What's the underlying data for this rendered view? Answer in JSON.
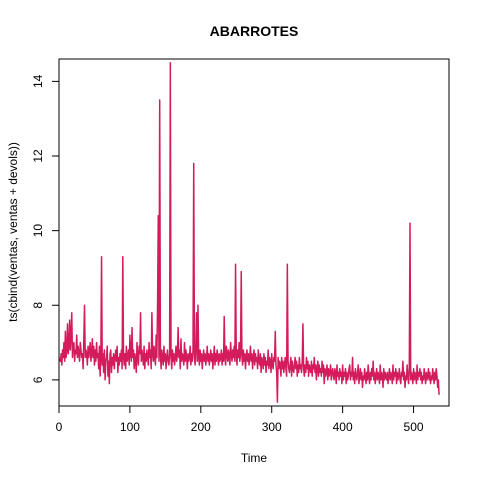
{
  "chart_data": {
    "type": "line",
    "title": "ABARROTES",
    "xlabel": "Time",
    "ylabel": "ts(cbind(ventas, ventas + devols))",
    "xlim": [
      0,
      550
    ],
    "ylim": [
      5.3,
      14.6
    ],
    "xticks": [
      "0",
      "100",
      "200",
      "300",
      "400",
      "500"
    ],
    "yticks": [
      "6",
      "8",
      "10",
      "12",
      "14"
    ],
    "grid": false,
    "legend": "none",
    "line_color": "#D41C5C",
    "series": [
      {
        "x_start": 1,
        "x_step": 1,
        "values": [
          6.6,
          6.5,
          6.7,
          6.4,
          6.8,
          6.6,
          7.0,
          6.5,
          7.3,
          6.6,
          6.8,
          7.5,
          6.7,
          6.9,
          7.6,
          6.8,
          7.2,
          7.8,
          6.6,
          6.9,
          7.0,
          6.5,
          6.8,
          6.7,
          7.2,
          6.6,
          6.9,
          6.7,
          6.5,
          7.0,
          6.8,
          6.6,
          6.7,
          6.3,
          7.1,
          8.0,
          6.6,
          6.8,
          6.7,
          6.4,
          6.9,
          6.6,
          6.8,
          7.0,
          6.5,
          6.7,
          7.1,
          6.6,
          6.9,
          6.4,
          6.8,
          6.5,
          7.0,
          6.6,
          6.7,
          6.3,
          6.9,
          6.1,
          6.6,
          9.3,
          6.4,
          6.7,
          6.2,
          6.8,
          6.0,
          6.5,
          6.6,
          6.9,
          6.1,
          6.5,
          5.9,
          6.7,
          6.8,
          6.2,
          6.6,
          6.4,
          6.7,
          6.3,
          6.6,
          6.8,
          6.5,
          6.9,
          6.2,
          6.6,
          6.4,
          6.7,
          6.5,
          6.8,
          6.3,
          9.3,
          6.6,
          6.4,
          6.7,
          6.3,
          6.9,
          6.5,
          6.6,
          6.8,
          6.4,
          7.2,
          6.7,
          6.5,
          7.4,
          6.6,
          6.8,
          6.3,
          6.7,
          6.5,
          6.2,
          7.0,
          6.6,
          6.4,
          6.9,
          6.7,
          7.8,
          6.5,
          6.8,
          6.6,
          6.4,
          6.9,
          6.3,
          6.7,
          6.5,
          6.8,
          6.6,
          6.4,
          7.0,
          6.6,
          6.8,
          6.3,
          7.8,
          6.7,
          6.5,
          6.9,
          6.6,
          6.4,
          7.2,
          6.6,
          8.0,
          10.4,
          6.5,
          13.5,
          6.7,
          6.3,
          6.8,
          6.6,
          6.4,
          6.9,
          6.5,
          6.7,
          6.3,
          6.6,
          6.8,
          6.5,
          6.4,
          6.7,
          14.5,
          6.6,
          6.3,
          6.8,
          6.5,
          6.7,
          6.4,
          6.6,
          6.9,
          6.5,
          6.7,
          7.4,
          6.6,
          6.8,
          6.3,
          7.1,
          6.5,
          6.7,
          6.6,
          6.4,
          7.0,
          6.5,
          6.8,
          6.6,
          6.3,
          6.7,
          6.5,
          6.6,
          6.9,
          6.4,
          6.7,
          6.5,
          6.8,
          11.8,
          6.6,
          6.4,
          6.9,
          7.8,
          6.5,
          8.0,
          6.6,
          6.4,
          6.8,
          6.5,
          6.7,
          6.3,
          6.6,
          6.8,
          6.5,
          6.7,
          6.4,
          6.6,
          6.9,
          6.5,
          6.7,
          6.4,
          6.6,
          6.8,
          6.5,
          6.7,
          6.3,
          6.6,
          6.9,
          6.4,
          6.7,
          6.5,
          6.8,
          6.6,
          6.4,
          6.7,
          6.5,
          6.6,
          6.8,
          6.4,
          6.7,
          6.5,
          7.7,
          6.6,
          6.4,
          6.9,
          6.7,
          6.5,
          6.8,
          6.6,
          6.4,
          7.0,
          6.7,
          6.5,
          6.8,
          6.6,
          6.9,
          6.5,
          9.1,
          6.7,
          6.4,
          6.8,
          6.6,
          7.0,
          6.5,
          6.7,
          8.9,
          6.6,
          6.4,
          6.8,
          6.5,
          6.7,
          6.3,
          6.6,
          6.8,
          6.5,
          6.7,
          6.4,
          6.6,
          6.9,
          6.5,
          6.7,
          6.3,
          6.6,
          6.8,
          6.4,
          6.7,
          6.5,
          6.6,
          6.3,
          6.8,
          6.5,
          6.4,
          6.7,
          6.2,
          6.6,
          6.5,
          6.3,
          6.7,
          6.4,
          6.6,
          6.2,
          6.5,
          6.4,
          6.8,
          6.3,
          6.6,
          6.5,
          6.2,
          6.7,
          6.4,
          6.3,
          6.6,
          6.5,
          7.3,
          6.4,
          6.2,
          5.4,
          6.6,
          6.3,
          6.5,
          6.4,
          6.1,
          6.6,
          6.3,
          6.5,
          6.2,
          6.4,
          6.6,
          6.3,
          6.1,
          9.1,
          6.5,
          6.3,
          6.2,
          6.4,
          6.6,
          6.1,
          6.5,
          6.3,
          6.2,
          6.4,
          6.6,
          6.3,
          6.5,
          6.1,
          6.4,
          6.2,
          6.6,
          6.3,
          6.4,
          6.2,
          6.5,
          7.5,
          6.3,
          6.1,
          6.4,
          6.2,
          6.6,
          6.3,
          6.5,
          6.1,
          6.4,
          6.3,
          6.2,
          6.5,
          6.1,
          6.4,
          6.3,
          6.6,
          6.2,
          6.4,
          6.0,
          6.3,
          6.5,
          6.1,
          6.4,
          6.2,
          6.3,
          6.1,
          6.5,
          6.2,
          6.4,
          5.9,
          6.3,
          6.1,
          6.2,
          6.4,
          6.0,
          6.3,
          6.1,
          6.2,
          6.4,
          6.0,
          6.2,
          6.3,
          6.1,
          6.0,
          6.3,
          6.2,
          5.9,
          6.4,
          6.1,
          6.2,
          6.0,
          6.3,
          6.1,
          6.2,
          5.9,
          6.4,
          6.0,
          6.2,
          6.1,
          6.3,
          5.9,
          6.2,
          6.0,
          6.1,
          6.3,
          6.4,
          6.0,
          6.2,
          6.1,
          6.6,
          6.0,
          6.2,
          5.9,
          6.3,
          6.1,
          6.0,
          6.2,
          6.4,
          5.9,
          6.1,
          6.3,
          6.0,
          6.2,
          5.8,
          6.1,
          6.0,
          6.3,
          6.1,
          5.9,
          6.2,
          6.0,
          6.4,
          6.1,
          5.9,
          6.2,
          6.0,
          6.3,
          6.1,
          6.5,
          6.0,
          6.2,
          5.9,
          6.1,
          6.3,
          6.0,
          6.2,
          6.1,
          5.9,
          6.4,
          6.0,
          6.2,
          6.1,
          5.8,
          6.3,
          6.0,
          6.2,
          6.1,
          6.0,
          6.2,
          5.9,
          6.1,
          6.3,
          6.0,
          6.2,
          6.1,
          5.9,
          6.4,
          6.0,
          6.2,
          6.1,
          6.3,
          5.9,
          6.2,
          6.0,
          6.1,
          6.3,
          6.0,
          5.9,
          6.2,
          6.1,
          6.5,
          6.0,
          6.2,
          5.8,
          6.1,
          6.0,
          6.4,
          6.1,
          5.9,
          6.3,
          10.2,
          6.0,
          6.2,
          6.1,
          5.9,
          6.3,
          6.0,
          6.2,
          6.1,
          5.9,
          6.4,
          6.0,
          6.2,
          6.1,
          6.3,
          6.0,
          6.2,
          5.9,
          6.1,
          6.0,
          6.3,
          6.1,
          5.9,
          6.2,
          6.0,
          6.1,
          6.3,
          6.0,
          6.2,
          5.9,
          6.1,
          6.0,
          6.3,
          6.1,
          5.9,
          6.2,
          6.0,
          6.3,
          6.1,
          5.8,
          6.0,
          5.6
        ]
      }
    ]
  }
}
